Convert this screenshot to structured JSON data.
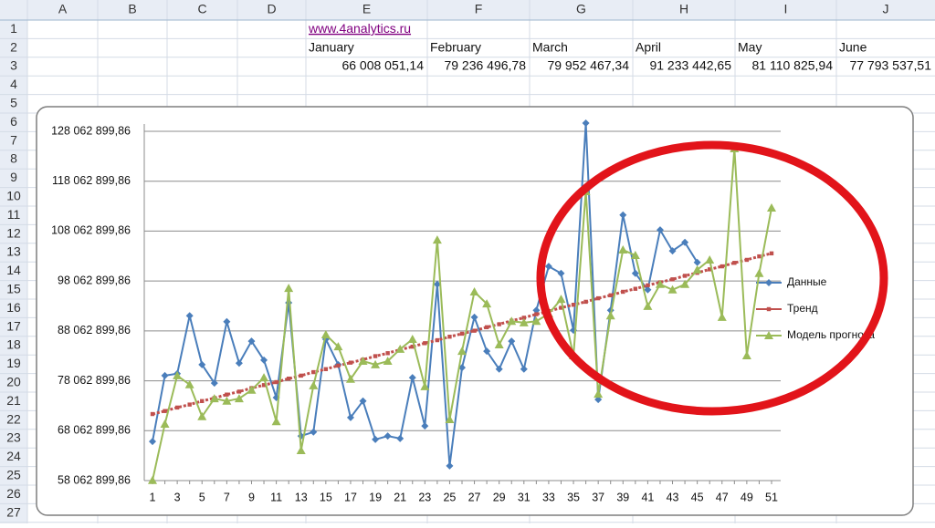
{
  "sheet": {
    "columns": [
      "A",
      "B",
      "C",
      "D",
      "E",
      "F",
      "G",
      "H",
      "I",
      "J"
    ],
    "rows": [
      1,
      2,
      3,
      4,
      5,
      6,
      7,
      8,
      9,
      10,
      11,
      12,
      13,
      14,
      15,
      16,
      17,
      18,
      19,
      20,
      21,
      22,
      23,
      24,
      25,
      26,
      27
    ],
    "link": "www.4analytics.ru",
    "months": [
      "January",
      "February",
      "March",
      "April",
      "May",
      "June"
    ],
    "amounts": [
      "66 008 051,14",
      "79 236 496,78",
      "79 952 467,34",
      "91 233 442,65",
      "81 110 825,94",
      "77 793 537,51"
    ]
  },
  "chart_data": {
    "type": "line",
    "categories": [
      1,
      null,
      3,
      null,
      5,
      null,
      7,
      null,
      9,
      null,
      11,
      null,
      13,
      null,
      15,
      null,
      17,
      null,
      19,
      null,
      21,
      null,
      23,
      null,
      25,
      null,
      27,
      null,
      29,
      null,
      31,
      null,
      33,
      null,
      35,
      null,
      37,
      null,
      39,
      null,
      41,
      null,
      43,
      null,
      45,
      null,
      47,
      null,
      49,
      null,
      51
    ],
    "ylim": [
      58062899.86,
      128062899.86
    ],
    "yticks": [
      {
        "value": 58062899.86,
        "label": "58 062 899,86"
      },
      {
        "value": 68062899.86,
        "label": "68 062 899,86"
      },
      {
        "value": 78062899.86,
        "label": "78 062 899,86"
      },
      {
        "value": 88062899.86,
        "label": "88 062 899,86"
      },
      {
        "value": 98062899.86,
        "label": "98 062 899,86"
      },
      {
        "value": 108062899.86,
        "label": "108 062 899,86"
      },
      {
        "value": 118062899.86,
        "label": "118 062 899,86"
      },
      {
        "value": 128062899.86,
        "label": "128 062 899,86"
      }
    ],
    "grid": true,
    "legend": "right",
    "series": [
      {
        "name": "Данные",
        "color": "#4a7ebb",
        "marker": "diamond",
        "values": [
          65900000,
          79100000,
          79500000,
          91100000,
          81300000,
          77600000,
          89900000,
          81600000,
          86000000,
          82200000,
          74700000,
          93700000,
          67000000,
          67800000,
          86400000,
          81300000,
          70700000,
          74000000,
          66300000,
          67000000,
          66500000,
          78700000,
          69000000,
          97400000,
          61000000,
          80700000,
          90800000,
          84000000,
          80400000,
          86000000,
          80400000,
          92200000,
          101000000,
          99600000,
          88200000,
          129700000,
          74300000,
          92200000,
          111300000,
          99600000,
          96300000,
          108300000,
          104100000,
          105800000,
          101800000,
          null,
          null,
          null,
          null,
          null,
          null
        ]
      },
      {
        "name": "Тренд",
        "color": "#c0504d",
        "marker": "square",
        "dashed": true,
        "values": [
          71400000,
          72000000,
          72700000,
          73300000,
          74000000,
          74600000,
          75300000,
          75900000,
          76600000,
          77200000,
          77800000,
          78500000,
          79100000,
          79800000,
          80400000,
          81100000,
          81700000,
          82300000,
          83000000,
          83600000,
          84300000,
          84900000,
          85600000,
          86200000,
          86900000,
          87500000,
          88100000,
          88800000,
          89400000,
          90100000,
          90700000,
          91400000,
          92000000,
          92700000,
          93300000,
          93900000,
          94600000,
          95200000,
          95900000,
          96500000,
          97200000,
          97800000,
          98400000,
          99100000,
          99700000,
          100400000,
          101000000,
          101700000,
          102300000,
          103000000,
          103600000
        ]
      },
      {
        "name": "Модель прогноза",
        "color": "#9bbb59",
        "marker": "triangle",
        "values": [
          58100000,
          69400000,
          79100000,
          77300000,
          70900000,
          74500000,
          74000000,
          74500000,
          76200000,
          78700000,
          69900000,
          96600000,
          64100000,
          77100000,
          87300000,
          84900000,
          78400000,
          82000000,
          81300000,
          82000000,
          84400000,
          86400000,
          76900000,
          106300000,
          70300000,
          84000000,
          95900000,
          93500000,
          85300000,
          90000000,
          89700000,
          90000000,
          91500000,
          94400000,
          83100000,
          116000000,
          75400000,
          91100000,
          104300000,
          103200000,
          93000000,
          97400000,
          96300000,
          97400000,
          100300000,
          102300000,
          90800000,
          124600000,
          83100000,
          99600000,
          112700000
        ]
      }
    ]
  }
}
